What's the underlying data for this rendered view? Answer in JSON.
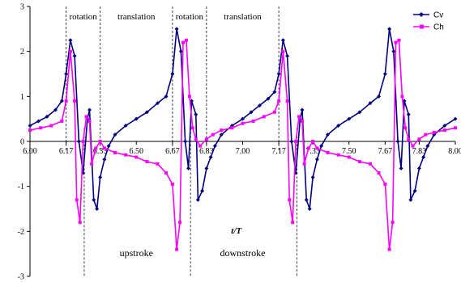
{
  "chart_data": {
    "type": "line",
    "title": "",
    "xlabel": "t/T",
    "ylabel": "",
    "xlim": [
      6.0,
      8.0
    ],
    "ylim": [
      -3,
      3
    ],
    "y_ticks": [
      "3",
      "2",
      "1",
      "0",
      "-1",
      "-2",
      "-3"
    ],
    "x_ticks": [
      "6.00",
      "6.17",
      "6.33",
      "6.50",
      "6.67",
      "6.83",
      "7.00",
      "7.17",
      "7.33",
      "7.50",
      "7.67",
      "7.83",
      "8.00"
    ],
    "grid": false,
    "legend_position": "top-right",
    "phase_boundaries": [
      6.17,
      6.33,
      6.67,
      6.83,
      7.17
    ],
    "stroke_boundaries": [
      6.255,
      6.755,
      7.255
    ],
    "phase_labels": [
      {
        "text": "rotation",
        "x": 6.25
      },
      {
        "text": "translation",
        "x": 6.5
      },
      {
        "text": "rotation",
        "x": 6.75
      },
      {
        "text": "translation",
        "x": 7.0
      }
    ],
    "stroke_labels": [
      {
        "text": "upstroke",
        "x": 6.5
      },
      {
        "text": "downstroke",
        "x": 7.0
      }
    ],
    "series": [
      {
        "name": "Cv",
        "color": "#000080",
        "marker": "diamond",
        "x": [
          6.0,
          6.04,
          6.08,
          6.12,
          6.15,
          6.17,
          6.19,
          6.21,
          6.23,
          6.25,
          6.27,
          6.28,
          6.3,
          6.315,
          6.33,
          6.35,
          6.37,
          6.4,
          6.45,
          6.5,
          6.55,
          6.6,
          6.64,
          6.67,
          6.69,
          6.71,
          6.73,
          6.745,
          6.76,
          6.78,
          6.79,
          6.81,
          6.83,
          6.85,
          6.87,
          6.9,
          6.95,
          7.0,
          7.04,
          7.08,
          7.12,
          7.15,
          7.17,
          7.19,
          7.21,
          7.23,
          7.25,
          7.27,
          7.28,
          7.3,
          7.315,
          7.33,
          7.35,
          7.37,
          7.4,
          7.45,
          7.5,
          7.55,
          7.6,
          7.64,
          7.67,
          7.69,
          7.71,
          7.73,
          7.745,
          7.76,
          7.78,
          7.79,
          7.81,
          7.83,
          7.85,
          7.87,
          7.9,
          7.95,
          8.0
        ],
        "y": [
          0.35,
          0.45,
          0.55,
          0.7,
          0.9,
          1.5,
          2.25,
          1.9,
          0.0,
          -0.7,
          0.5,
          0.7,
          -1.3,
          -1.5,
          -0.8,
          -0.4,
          -0.1,
          0.15,
          0.35,
          0.5,
          0.65,
          0.85,
          1.0,
          1.5,
          2.5,
          2.0,
          0.0,
          -0.6,
          0.9,
          0.6,
          -1.3,
          -1.1,
          -0.6,
          -0.35,
          -0.1,
          0.15,
          0.35,
          0.5,
          0.65,
          0.8,
          0.95,
          1.1,
          1.5,
          2.25,
          1.9,
          0.0,
          -0.7,
          0.5,
          0.7,
          -1.3,
          -1.5,
          -0.8,
          -0.4,
          -0.1,
          0.15,
          0.35,
          0.5,
          0.65,
          0.85,
          1.0,
          1.5,
          2.5,
          2.0,
          0.0,
          -0.6,
          0.9,
          0.6,
          -1.3,
          -1.1,
          -0.6,
          -0.35,
          -0.1,
          0.15,
          0.35,
          0.5
        ]
      },
      {
        "name": "Ch",
        "color": "#ff00ff",
        "marker": "square",
        "x": [
          6.0,
          6.05,
          6.1,
          6.15,
          6.17,
          6.19,
          6.21,
          6.22,
          6.235,
          6.25,
          6.265,
          6.28,
          6.29,
          6.31,
          6.33,
          6.35,
          6.4,
          6.45,
          6.5,
          6.55,
          6.6,
          6.64,
          6.67,
          6.69,
          6.705,
          6.72,
          6.735,
          6.75,
          6.765,
          6.78,
          6.8,
          6.83,
          6.86,
          6.9,
          6.95,
          7.0,
          7.05,
          7.1,
          7.15,
          7.17,
          7.19,
          7.21,
          7.22,
          7.235,
          7.25,
          7.265,
          7.28,
          7.29,
          7.31,
          7.33,
          7.35,
          7.4,
          7.45,
          7.5,
          7.55,
          7.6,
          7.64,
          7.67,
          7.69,
          7.705,
          7.72,
          7.735,
          7.75,
          7.765,
          7.78,
          7.8,
          7.83,
          7.86,
          7.9,
          7.95,
          8.0
        ],
        "y": [
          0.25,
          0.3,
          0.35,
          0.45,
          0.9,
          2.0,
          0.9,
          -1.3,
          -1.8,
          0.0,
          0.55,
          0.45,
          -0.5,
          -0.15,
          0.0,
          -0.15,
          -0.25,
          -0.3,
          -0.35,
          -0.45,
          -0.5,
          -0.7,
          -0.95,
          -2.4,
          -1.8,
          2.2,
          2.25,
          1.0,
          0.3,
          0.05,
          -0.1,
          0.05,
          0.15,
          0.25,
          0.3,
          0.4,
          0.45,
          0.55,
          0.65,
          0.9,
          2.0,
          0.9,
          -1.3,
          -1.8,
          0.0,
          0.55,
          0.45,
          -0.5,
          -0.15,
          0.0,
          -0.15,
          -0.25,
          -0.3,
          -0.35,
          -0.45,
          -0.5,
          -0.7,
          -0.95,
          -2.4,
          -1.8,
          2.2,
          2.25,
          1.0,
          0.3,
          0.05,
          -0.1,
          0.05,
          0.15,
          0.2,
          0.25,
          0.3
        ]
      }
    ]
  }
}
